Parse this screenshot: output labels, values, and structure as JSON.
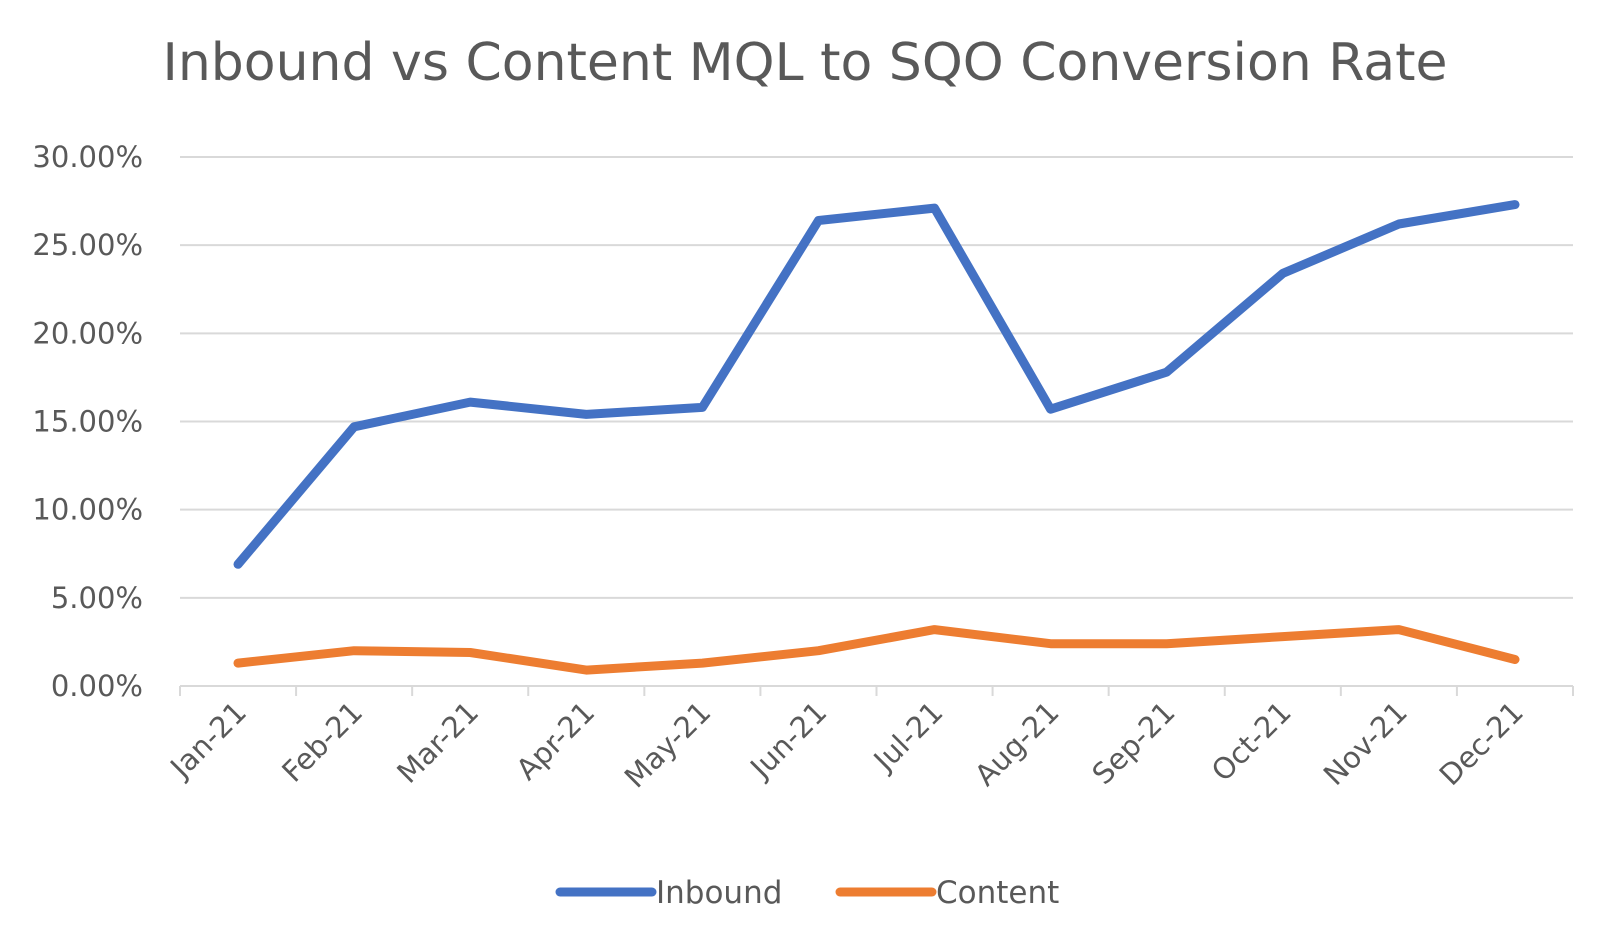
{
  "chart_data": {
    "type": "line",
    "title": "Inbound vs Content MQL to SQO Conversion Rate",
    "xlabel": "",
    "ylabel": "",
    "categories": [
      "Jan-21",
      "Feb-21",
      "Mar-21",
      "Apr-21",
      "May-21",
      "Jun-21",
      "Jul-21",
      "Aug-21",
      "Sep-21",
      "Oct-21",
      "Nov-21",
      "Dec-21"
    ],
    "series": [
      {
        "name": "Inbound",
        "color": "#4472c4",
        "values": [
          0.069,
          0.147,
          0.161,
          0.154,
          0.158,
          0.264,
          0.271,
          0.157,
          0.178,
          0.234,
          0.262,
          0.273
        ]
      },
      {
        "name": "Content",
        "color": "#ed7d31",
        "values": [
          0.013,
          0.02,
          0.019,
          0.009,
          0.013,
          0.02,
          0.032,
          0.024,
          0.024,
          0.028,
          0.032,
          0.015
        ]
      }
    ],
    "ylim": [
      0,
      0.3
    ],
    "yticks": [
      0,
      0.05,
      0.1,
      0.15,
      0.2,
      0.25,
      0.3
    ],
    "ytick_labels": [
      "0.00%",
      "5.00%",
      "10.00%",
      "15.00%",
      "20.00%",
      "25.00%",
      "30.00%"
    ],
    "grid": true,
    "legend_position": "bottom"
  }
}
